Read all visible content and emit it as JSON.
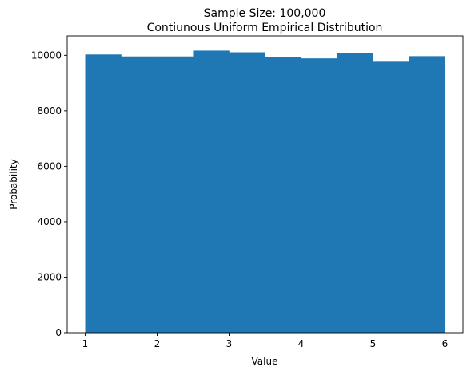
{
  "chart_data": {
    "type": "bar",
    "title": "Sample Size: 100,000",
    "subtitle": "Contiunous Uniform Empirical Distribution",
    "xlabel": "Value",
    "ylabel": "Probability",
    "xlim": [
      0.75,
      6.25
    ],
    "ylim": [
      0,
      10700
    ],
    "x_ticks": [
      1,
      2,
      3,
      4,
      5,
      6
    ],
    "y_ticks": [
      0,
      2000,
      4000,
      6000,
      8000,
      10000
    ],
    "bin_edges": [
      1.0,
      1.5,
      2.0,
      2.5,
      3.0,
      3.5,
      4.0,
      4.5,
      5.0,
      5.5,
      6.0
    ],
    "values": [
      10030,
      9960,
      9960,
      10170,
      10110,
      9940,
      9890,
      10080,
      9770,
      9970
    ],
    "bar_color": "#1f77b4",
    "grid": false,
    "legend": "none"
  }
}
